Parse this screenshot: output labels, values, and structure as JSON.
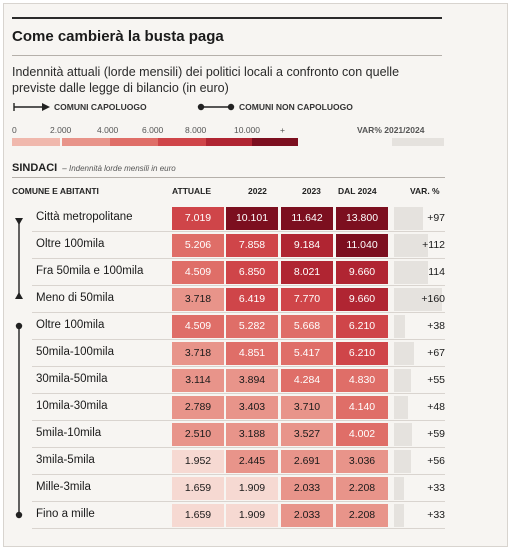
{
  "title": "Come cambierà la busta paga",
  "subtitle": "Indennità attuali (lorde mensili) dei politici locali a confronto con quelle previste dalle legge di bilancio (in euro)",
  "legend": {
    "capoluogo": "COMUNI CAPOLUOGO",
    "non_capoluogo": "COMUNI NON CAPOLUOGO"
  },
  "color_scale": {
    "labels": [
      "0",
      "2.000",
      "4.000",
      "6.000",
      "8.000",
      "10.000",
      "+"
    ],
    "colors": [
      "#f6d9d2",
      "#f0b8ad",
      "#e8948a",
      "#df6e68",
      "#cf4549",
      "#b02532",
      "#7c0f1f"
    ],
    "var_label": "VAR% 2021/2024"
  },
  "section": {
    "title": "SINDACI",
    "note": "– Indennità lorde mensili in euro"
  },
  "chart_data": {
    "type": "table",
    "columns": [
      "COMUNE E ABITANTI",
      "ATTUALE",
      "2022",
      "2023",
      "DAL 2024",
      "VAR. %"
    ],
    "groups": [
      {
        "legend": "capoluogo",
        "rows": [
          0,
          1,
          2,
          3
        ]
      },
      {
        "legend": "non_capoluogo",
        "rows": [
          4,
          5,
          6,
          7,
          8,
          9,
          10,
          11
        ]
      }
    ],
    "rows": [
      {
        "label": "Città metropolitane",
        "values": [
          7019,
          10101,
          11642,
          13800
        ],
        "display": [
          "7.019",
          "10.101",
          "11.642",
          "13.800"
        ],
        "var": "+97"
      },
      {
        "label": "Oltre 100mila",
        "values": [
          5206,
          7858,
          9184,
          11040
        ],
        "display": [
          "5.206",
          "7.858",
          "9.184",
          "11.040"
        ],
        "var": "+112"
      },
      {
        "label": "Fra 50mila e 100mila",
        "values": [
          4509,
          6850,
          8021,
          9660
        ],
        "display": [
          "4.509",
          "6.850",
          "8.021",
          "9.660"
        ],
        "var": "114"
      },
      {
        "label": "Meno di 50mila",
        "values": [
          3718,
          6419,
          7770,
          9660
        ],
        "display": [
          "3.718",
          "6.419",
          "7.770",
          "9.660"
        ],
        "var": "+160"
      },
      {
        "label": "Oltre 100mila",
        "values": [
          4509,
          5282,
          5668,
          6210
        ],
        "display": [
          "4.509",
          "5.282",
          "5.668",
          "6.210"
        ],
        "var": "+38"
      },
      {
        "label": "50mila-100mila",
        "values": [
          3718,
          4851,
          5417,
          6210
        ],
        "display": [
          "3.718",
          "4.851",
          "5.417",
          "6.210"
        ],
        "var": "+67"
      },
      {
        "label": "30mila-50mila",
        "values": [
          3114,
          3894,
          4284,
          4830
        ],
        "display": [
          "3.114",
          "3.894",
          "4.284",
          "4.830"
        ],
        "var": "+55"
      },
      {
        "label": "10mila-30mila",
        "values": [
          2789,
          3403,
          3710,
          4140
        ],
        "display": [
          "2.789",
          "3.403",
          "3.710",
          "4.140"
        ],
        "var": "+48"
      },
      {
        "label": "5mila-10mila",
        "values": [
          2510,
          3188,
          3527,
          4002
        ],
        "display": [
          "2.510",
          "3.188",
          "3.527",
          "4.002"
        ],
        "var": "+59"
      },
      {
        "label": "3mila-5mila",
        "values": [
          1952,
          2445,
          2691,
          3036
        ],
        "display": [
          "1.952",
          "2.445",
          "2.691",
          "3.036"
        ],
        "var": "+56"
      },
      {
        "label": "Mille-3mila",
        "values": [
          1659,
          1909,
          2033,
          2208
        ],
        "display": [
          "1.659",
          "1.909",
          "2.033",
          "2.208"
        ],
        "var": "+33"
      },
      {
        "label": "Fino a mille",
        "values": [
          1659,
          1909,
          2033,
          2208
        ],
        "display": [
          "1.659",
          "1.909",
          "2.033",
          "2.208"
        ],
        "var": "+33"
      }
    ]
  }
}
